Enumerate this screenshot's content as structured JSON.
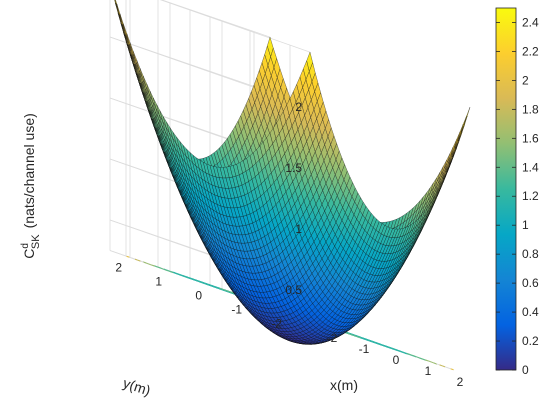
{
  "chart_data": {
    "type": "surface3d",
    "title": "",
    "xlabel": "x(m)",
    "ylabel": "y(m)",
    "zlabel": {
      "main": "C",
      "superscript": "d",
      "subscript": "SK",
      "units": "(nats/channel use)"
    },
    "xlim": [
      -2.5,
      2.5
    ],
    "ylim": [
      -2.5,
      2.5
    ],
    "zlim": [
      0.25,
      2.45
    ],
    "x_ticks": [
      "-2",
      "-1",
      "0",
      "1",
      "2"
    ],
    "y_ticks": [
      "-2",
      "-1",
      "0",
      "1",
      "2"
    ],
    "z_ticks": [
      "0.5",
      "1",
      "1.5",
      "2"
    ],
    "grid": true,
    "surface_samples": {
      "x": [
        -2.5,
        -2,
        -1,
        0,
        1,
        2,
        2.5
      ],
      "y": [
        -2.5,
        -2,
        -1,
        0,
        1,
        2,
        2.5
      ],
      "z_at_center": 0.02,
      "z_at_corner": 2.45,
      "note_shape": "bowl, z grows with distance from origin"
    },
    "contour_levels": [
      0.2,
      0.4,
      0.6,
      0.8,
      1.0,
      1.2,
      1.4,
      1.6,
      1.8,
      2.0
    ],
    "colorbar": {
      "range": [
        0,
        2.5
      ],
      "ticks": [
        "0",
        "0.2",
        "0.4",
        "0.6",
        "0.8",
        "1",
        "1.2",
        "1.4",
        "1.6",
        "1.8",
        "2",
        "2.2",
        "2.4"
      ],
      "colormap": "parula",
      "colors": [
        "#352a87",
        "#0363e1",
        "#1485d4",
        "#06a7c6",
        "#38b99e",
        "#92bf73",
        "#d9ba56",
        "#fcce2e",
        "#f9fb0e"
      ]
    }
  }
}
